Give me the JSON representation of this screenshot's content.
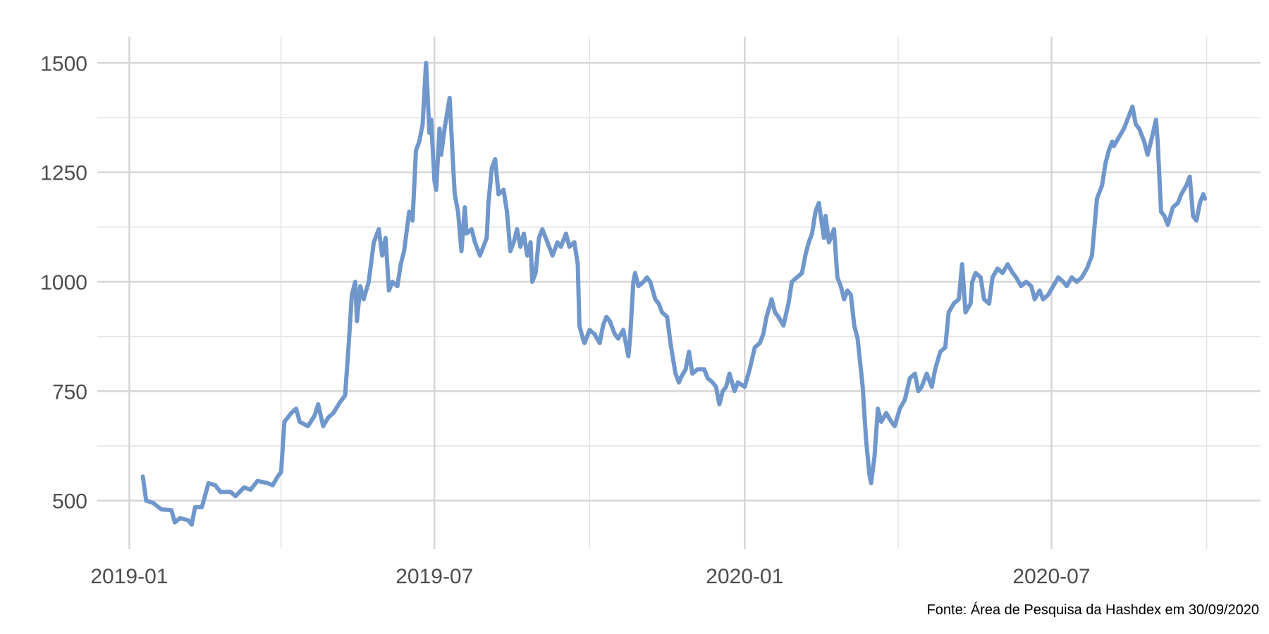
{
  "chart_data": {
    "type": "line",
    "color": "#7097cb",
    "grid": true,
    "caption": "Fonte: Área de Pesquisa da Hashdex em 30/09/2020",
    "xlim": [
      "2018-12-13",
      "2020-11-02"
    ],
    "xticks": [
      "2019-01",
      "2019-07",
      "2020-01",
      "2020-07"
    ],
    "xminor": [
      "2019-04",
      "2019-10",
      "2020-04",
      "2020-10"
    ],
    "ylim": [
      390,
      1560
    ],
    "yticks": [
      500,
      750,
      1000,
      1250,
      1500
    ],
    "yminor": [
      625,
      875,
      1125,
      1375
    ],
    "x": [
      "2019-01-09",
      "2019-01-11",
      "2019-01-15",
      "2019-01-20",
      "2019-01-26",
      "2019-01-28",
      "2019-01-31",
      "2019-02-05",
      "2019-02-07",
      "2019-02-09",
      "2019-02-13",
      "2019-02-17",
      "2019-02-21",
      "2019-02-24",
      "2019-03-02",
      "2019-03-05",
      "2019-03-10",
      "2019-03-14",
      "2019-03-18",
      "2019-03-24",
      "2019-03-27",
      "2019-03-30",
      "2019-04-01",
      "2019-04-03",
      "2019-04-07",
      "2019-04-10",
      "2019-04-12",
      "2019-04-17",
      "2019-04-21",
      "2019-04-23",
      "2019-04-26",
      "2019-04-29",
      "2019-05-02",
      "2019-05-06",
      "2019-05-09",
      "2019-05-11",
      "2019-05-13",
      "2019-05-15",
      "2019-05-16",
      "2019-05-18",
      "2019-05-20",
      "2019-05-23",
      "2019-05-26",
      "2019-05-29",
      "2019-05-31",
      "2019-06-02",
      "2019-06-04",
      "2019-06-06",
      "2019-06-09",
      "2019-06-11",
      "2019-06-13",
      "2019-06-16",
      "2019-06-18",
      "2019-06-20",
      "2019-06-22",
      "2019-06-24",
      "2019-06-26",
      "2019-06-28",
      "2019-06-29",
      "2019-07-01",
      "2019-07-02",
      "2019-07-04",
      "2019-07-05",
      "2019-07-07",
      "2019-07-10",
      "2019-07-12",
      "2019-07-13",
      "2019-07-15",
      "2019-07-17",
      "2019-07-19",
      "2019-07-20",
      "2019-07-23",
      "2019-07-25",
      "2019-07-28",
      "2019-08-01",
      "2019-08-02",
      "2019-08-04",
      "2019-08-06",
      "2019-08-08",
      "2019-08-11",
      "2019-08-13",
      "2019-08-15",
      "2019-08-17",
      "2019-08-19",
      "2019-08-21",
      "2019-08-23",
      "2019-08-25",
      "2019-08-27",
      "2019-08-28",
      "2019-08-30",
      "2019-09-01",
      "2019-09-03",
      "2019-09-06",
      "2019-09-09",
      "2019-09-12",
      "2019-09-14",
      "2019-09-17",
      "2019-09-19",
      "2019-09-22",
      "2019-09-24",
      "2019-09-25",
      "2019-09-27",
      "2019-09-28",
      "2019-10-01",
      "2019-10-04",
      "2019-10-07",
      "2019-10-09",
      "2019-10-11",
      "2019-10-13",
      "2019-10-16",
      "2019-10-18",
      "2019-10-21",
      "2019-10-23",
      "2019-10-24",
      "2019-10-25",
      "2019-10-27",
      "2019-10-28",
      "2019-10-30",
      "2019-11-02",
      "2019-11-04",
      "2019-11-06",
      "2019-11-09",
      "2019-11-11",
      "2019-11-13",
      "2019-11-16",
      "2019-11-18",
      "2019-11-21",
      "2019-11-23",
      "2019-11-24",
      "2019-11-27",
      "2019-11-29",
      "2019-12-01",
      "2019-12-04",
      "2019-12-08",
      "2019-12-10",
      "2019-12-13",
      "2019-12-15",
      "2019-12-17",
      "2019-12-19",
      "2019-12-21",
      "2019-12-23",
      "2019-12-26",
      "2019-12-28",
      "2020-01-01",
      "2020-01-04",
      "2020-01-07",
      "2020-01-10",
      "2020-01-12",
      "2020-01-14",
      "2020-01-17",
      "2020-01-19",
      "2020-01-21",
      "2020-01-24",
      "2020-01-27",
      "2020-01-29",
      "2020-02-01",
      "2020-02-04",
      "2020-02-06",
      "2020-02-08",
      "2020-02-10",
      "2020-02-12",
      "2020-02-14",
      "2020-02-17",
      "2020-02-18",
      "2020-02-20",
      "2020-02-23",
      "2020-02-25",
      "2020-02-27",
      "2020-02-29",
      "2020-03-02",
      "2020-03-04",
      "2020-03-06",
      "2020-03-08",
      "2020-03-11",
      "2020-03-13",
      "2020-03-15",
      "2020-03-16",
      "2020-03-18",
      "2020-03-20",
      "2020-03-22",
      "2020-03-25",
      "2020-03-28",
      "2020-03-30",
      "2020-04-02",
      "2020-04-05",
      "2020-04-08",
      "2020-04-11",
      "2020-04-13",
      "2020-04-15",
      "2020-04-18",
      "2020-04-21",
      "2020-04-23",
      "2020-04-26",
      "2020-04-29",
      "2020-05-01",
      "2020-05-04",
      "2020-05-07",
      "2020-05-09",
      "2020-05-11",
      "2020-05-14",
      "2020-05-15",
      "2020-05-17",
      "2020-05-20",
      "2020-05-22",
      "2020-05-25",
      "2020-05-27",
      "2020-05-30",
      "2020-06-02",
      "2020-06-05",
      "2020-06-08",
      "2020-06-10",
      "2020-06-13",
      "2020-06-16",
      "2020-06-19",
      "2020-06-21",
      "2020-06-24",
      "2020-06-26",
      "2020-06-29",
      "2020-07-02",
      "2020-07-05",
      "2020-07-08",
      "2020-07-10",
      "2020-07-13",
      "2020-07-16",
      "2020-07-19",
      "2020-07-22",
      "2020-07-25",
      "2020-07-28",
      "2020-07-31",
      "2020-08-02",
      "2020-08-04",
      "2020-08-06",
      "2020-08-07",
      "2020-08-10",
      "2020-08-13",
      "2020-08-16",
      "2020-08-18",
      "2020-08-20",
      "2020-08-22",
      "2020-08-25",
      "2020-08-27",
      "2020-08-29",
      "2020-09-01",
      "2020-09-02",
      "2020-09-04",
      "2020-09-06",
      "2020-09-08",
      "2020-09-11",
      "2020-09-14",
      "2020-09-16",
      "2020-09-19",
      "2020-09-21",
      "2020-09-23",
      "2020-09-25",
      "2020-09-27",
      "2020-09-29",
      "2020-09-30"
    ],
    "values": [
      555,
      500,
      495,
      480,
      478,
      450,
      460,
      455,
      445,
      485,
      485,
      540,
      535,
      520,
      520,
      510,
      530,
      525,
      545,
      540,
      535,
      555,
      565,
      680,
      700,
      710,
      680,
      670,
      695,
      720,
      670,
      690,
      700,
      725,
      740,
      850,
      970,
      1000,
      910,
      990,
      960,
      1000,
      1090,
      1120,
      1060,
      1100,
      980,
      1000,
      990,
      1040,
      1070,
      1160,
      1140,
      1300,
      1320,
      1360,
      1500,
      1340,
      1370,
      1230,
      1210,
      1350,
      1290,
      1350,
      1420,
      1270,
      1200,
      1160,
      1070,
      1170,
      1110,
      1120,
      1090,
      1060,
      1100,
      1180,
      1260,
      1280,
      1200,
      1210,
      1160,
      1070,
      1090,
      1120,
      1080,
      1110,
      1060,
      1090,
      1000,
      1020,
      1100,
      1120,
      1090,
      1060,
      1090,
      1080,
      1110,
      1080,
      1090,
      1040,
      900,
      870,
      860,
      890,
      880,
      860,
      900,
      920,
      910,
      880,
      870,
      890,
      850,
      830,
      870,
      1000,
      1020,
      990,
      1000,
      1010,
      1000,
      960,
      950,
      930,
      920,
      860,
      790,
      770,
      780,
      800,
      840,
      790,
      800,
      800,
      780,
      770,
      760,
      720,
      750,
      760,
      790,
      750,
      770,
      760,
      800,
      850,
      860,
      880,
      920,
      960,
      930,
      920,
      900,
      950,
      1000,
      1010,
      1020,
      1060,
      1090,
      1110,
      1160,
      1180,
      1100,
      1150,
      1090,
      1120,
      1010,
      990,
      960,
      980,
      970,
      900,
      870,
      760,
      640,
      560,
      540,
      600,
      710,
      680,
      700,
      680,
      670,
      710,
      730,
      780,
      790,
      750,
      760,
      790,
      760,
      800,
      840,
      850,
      930,
      950,
      960,
      1040,
      930,
      950,
      1000,
      1020,
      1010,
      960,
      950,
      1010,
      1030,
      1020,
      1040,
      1020,
      1010,
      990,
      1000,
      990,
      960,
      980,
      960,
      970,
      990,
      1010,
      1000,
      990,
      1010,
      1000,
      1010,
      1030,
      1060,
      1190,
      1220,
      1270,
      1300,
      1320,
      1310,
      1330,
      1350,
      1380,
      1400,
      1360,
      1350,
      1320,
      1290,
      1320,
      1370,
      1320,
      1160,
      1150,
      1130,
      1170,
      1180,
      1200,
      1220,
      1240,
      1150,
      1140,
      1180,
      1200,
      1190
    ]
  }
}
